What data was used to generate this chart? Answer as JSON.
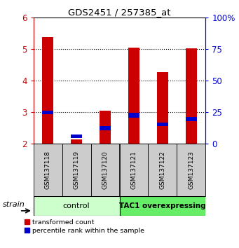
{
  "title": "GDS2451 / 257385_at",
  "samples": [
    "GSM137118",
    "GSM137119",
    "GSM137120",
    "GSM137121",
    "GSM137122",
    "GSM137123"
  ],
  "red_values": [
    5.38,
    2.15,
    3.05,
    5.05,
    4.27,
    5.02
  ],
  "blue_values": [
    2.93,
    2.18,
    2.43,
    2.83,
    2.57,
    2.72
  ],
  "blue_heights": [
    0.12,
    0.12,
    0.12,
    0.15,
    0.1,
    0.12
  ],
  "red_color": "#cc0000",
  "blue_color": "#0000cc",
  "ylim_min": 2.0,
  "ylim_max": 6.0,
  "yticks_left": [
    2,
    3,
    4,
    5,
    6
  ],
  "bar_width": 0.4,
  "groups": [
    {
      "label": "control",
      "indices": [
        0,
        1,
        2
      ],
      "color": "#ccffcc"
    },
    {
      "label": "TAC1 overexpressing",
      "indices": [
        3,
        4,
        5
      ],
      "color": "#66ee66"
    }
  ],
  "group_box_color": "#cccccc",
  "strain_label": "strain",
  "legend_red": "transformed count",
  "legend_blue": "percentile rank within the sample",
  "right_tick_labels": [
    "0",
    "25",
    "50",
    "75",
    "100%"
  ],
  "right_tick_vals": [
    2.0,
    3.0,
    4.0,
    5.0,
    6.0
  ]
}
